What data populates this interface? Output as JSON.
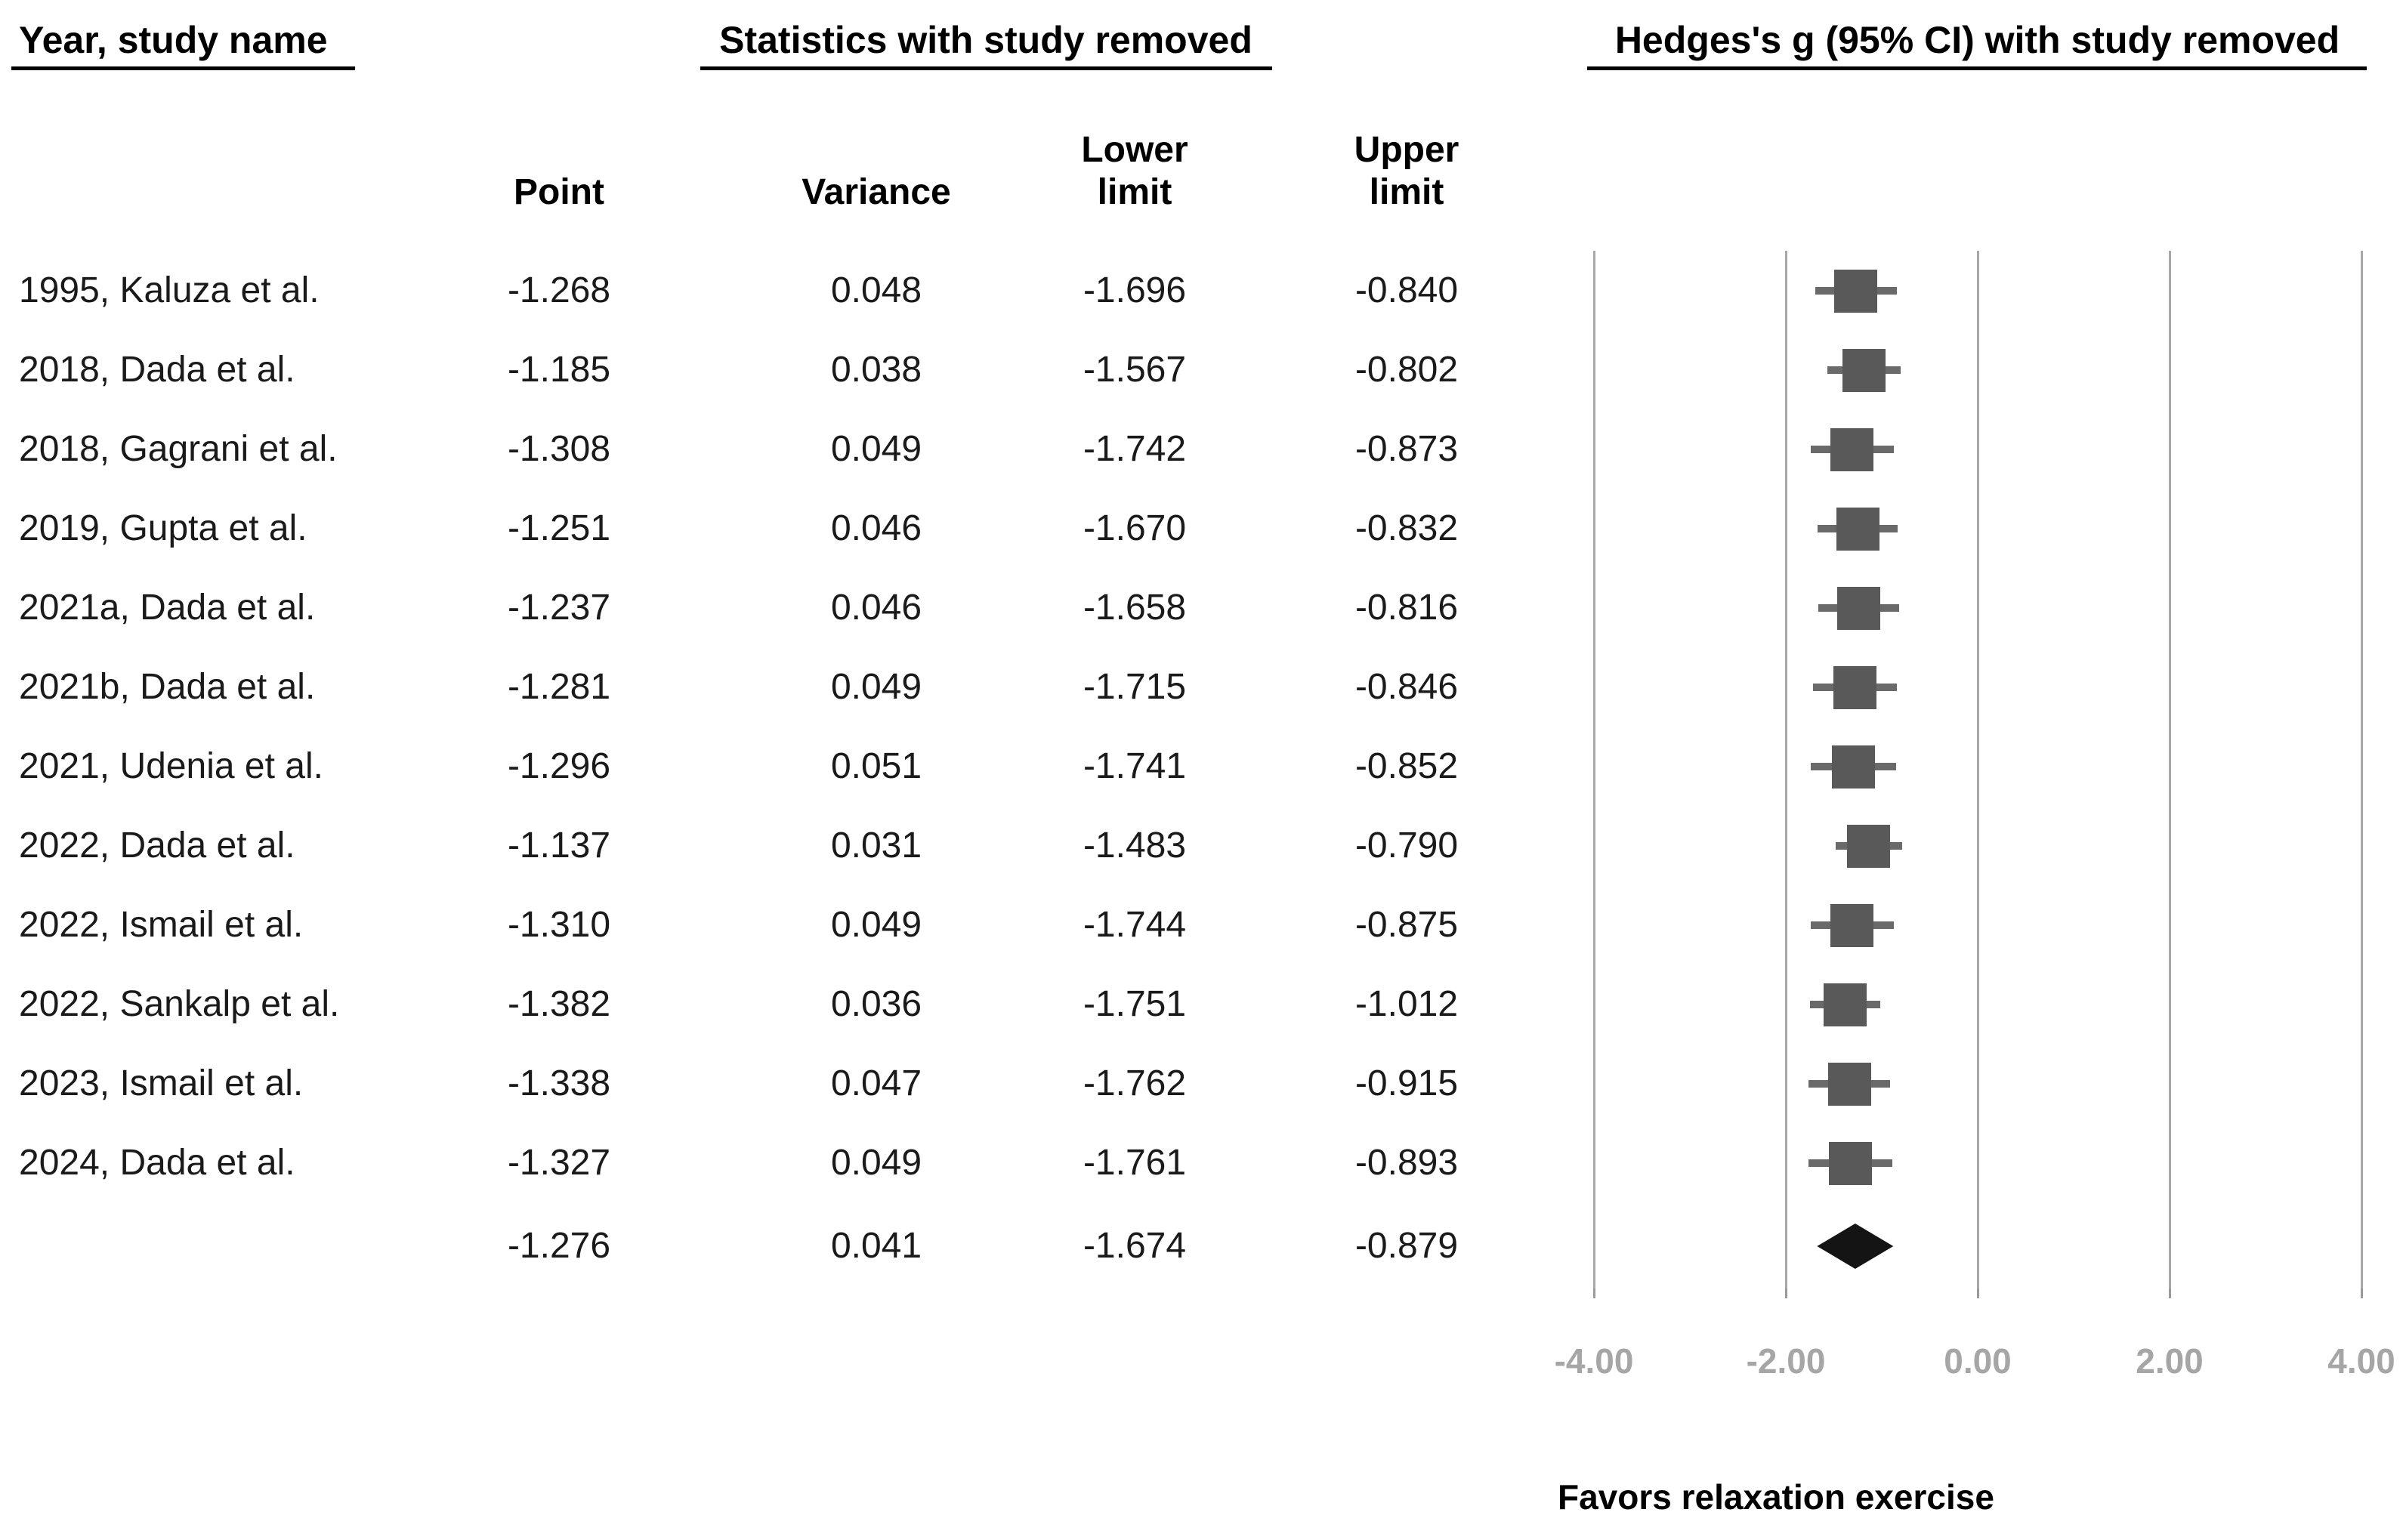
{
  "page": {
    "title_left": "Year, study name",
    "title_stats": "Statistics with study removed",
    "title_plot": "Hedges's g (95% CI) with study removed"
  },
  "columns": {
    "point": "Point",
    "variance": "Variance",
    "lower_line1": "Lower",
    "lower_line2": "limit",
    "upper_line1": "Upper",
    "upper_line2": "limit"
  },
  "rows": [
    {
      "label": "1995, Kaluza et al.",
      "point": "-1.268",
      "variance": "0.048",
      "lower": "-1.696",
      "upper": "-0.840"
    },
    {
      "label": "2018, Dada et al.",
      "point": "-1.185",
      "variance": "0.038",
      "lower": "-1.567",
      "upper": "-0.802"
    },
    {
      "label": "2018, Gagrani et al.",
      "point": "-1.308",
      "variance": "0.049",
      "lower": "-1.742",
      "upper": "-0.873"
    },
    {
      "label": "2019, Gupta et al.",
      "point": "-1.251",
      "variance": "0.046",
      "lower": "-1.670",
      "upper": "-0.832"
    },
    {
      "label": "2021a, Dada et al.",
      "point": "-1.237",
      "variance": "0.046",
      "lower": "-1.658",
      "upper": "-0.816"
    },
    {
      "label": "2021b, Dada et al.",
      "point": "-1.281",
      "variance": "0.049",
      "lower": "-1.715",
      "upper": "-0.846"
    },
    {
      "label": "2021, Udenia et al.",
      "point": "-1.296",
      "variance": "0.051",
      "lower": "-1.741",
      "upper": "-0.852"
    },
    {
      "label": "2022, Dada et al.",
      "point": "-1.137",
      "variance": "0.031",
      "lower": "-1.483",
      "upper": "-0.790"
    },
    {
      "label": "2022, Ismail et al.",
      "point": "-1.310",
      "variance": "0.049",
      "lower": "-1.744",
      "upper": "-0.875"
    },
    {
      "label": "2022, Sankalp et al.",
      "point": "-1.382",
      "variance": "0.036",
      "lower": "-1.751",
      "upper": "-1.012"
    },
    {
      "label": "2023, Ismail et al.",
      "point": "-1.338",
      "variance": "0.047",
      "lower": "-1.762",
      "upper": "-0.915"
    },
    {
      "label": "2024, Dada et al.",
      "point": "-1.327",
      "variance": "0.049",
      "lower": "-1.761",
      "upper": "-0.893"
    }
  ],
  "summary": {
    "point": "-1.276",
    "variance": "0.041",
    "lower": "-1.674",
    "upper": "-0.879"
  },
  "axis": {
    "tick_labels": [
      "-4.00",
      "-2.00",
      "0.00",
      "2.00",
      "4.00"
    ],
    "tick_values": [
      -4,
      -2,
      0,
      2,
      4
    ]
  },
  "footer": {
    "favors": "Favors relaxation exercise"
  },
  "colors": {
    "marker": "#595959",
    "ci_line": "#6a6a6a",
    "diamond": "#141414",
    "gridline": "#a8a8a8",
    "tick_label": "#a6a6a6",
    "text": "#1a1a1a"
  },
  "chart_data": {
    "type": "scatter",
    "subtype": "forest-plot-leave-one-out",
    "title": "Hedges's g (95% CI) with study removed",
    "left_header": "Year, study name",
    "stats_header": "Statistics with study removed",
    "column_headers": [
      "Point",
      "Variance",
      "Lower limit",
      "Upper limit"
    ],
    "studies": [
      {
        "name": "1995, Kaluza et al.",
        "point": -1.268,
        "variance": 0.048,
        "lower": -1.696,
        "upper": -0.84
      },
      {
        "name": "2018, Dada et al.",
        "point": -1.185,
        "variance": 0.038,
        "lower": -1.567,
        "upper": -0.802
      },
      {
        "name": "2018, Gagrani et al.",
        "point": -1.308,
        "variance": 0.049,
        "lower": -1.742,
        "upper": -0.873
      },
      {
        "name": "2019, Gupta et al.",
        "point": -1.251,
        "variance": 0.046,
        "lower": -1.67,
        "upper": -0.832
      },
      {
        "name": "2021a, Dada et al.",
        "point": -1.237,
        "variance": 0.046,
        "lower": -1.658,
        "upper": -0.816
      },
      {
        "name": "2021b, Dada et al.",
        "point": -1.281,
        "variance": 0.049,
        "lower": -1.715,
        "upper": -0.846
      },
      {
        "name": "2021, Udenia et al.",
        "point": -1.296,
        "variance": 0.051,
        "lower": -1.741,
        "upper": -0.852
      },
      {
        "name": "2022, Dada et al.",
        "point": -1.137,
        "variance": 0.031,
        "lower": -1.483,
        "upper": -0.79
      },
      {
        "name": "2022, Ismail et al.",
        "point": -1.31,
        "variance": 0.049,
        "lower": -1.744,
        "upper": -0.875
      },
      {
        "name": "2022, Sankalp et al.",
        "point": -1.382,
        "variance": 0.036,
        "lower": -1.751,
        "upper": -1.012
      },
      {
        "name": "2023, Ismail et al.",
        "point": -1.338,
        "variance": 0.047,
        "lower": -1.762,
        "upper": -0.915
      },
      {
        "name": "2024, Dada et al.",
        "point": -1.327,
        "variance": 0.049,
        "lower": -1.761,
        "upper": -0.893
      }
    ],
    "summary": {
      "point": -1.276,
      "variance": 0.041,
      "lower": -1.674,
      "upper": -0.879
    },
    "xlim": [
      -4.4,
      4.4
    ],
    "x_ticks": [
      -4.0,
      -2.0,
      0.0,
      2.0,
      4.0
    ],
    "grid": "vertical-only",
    "legend": "none",
    "annotation": "Favors relaxation exercise"
  }
}
